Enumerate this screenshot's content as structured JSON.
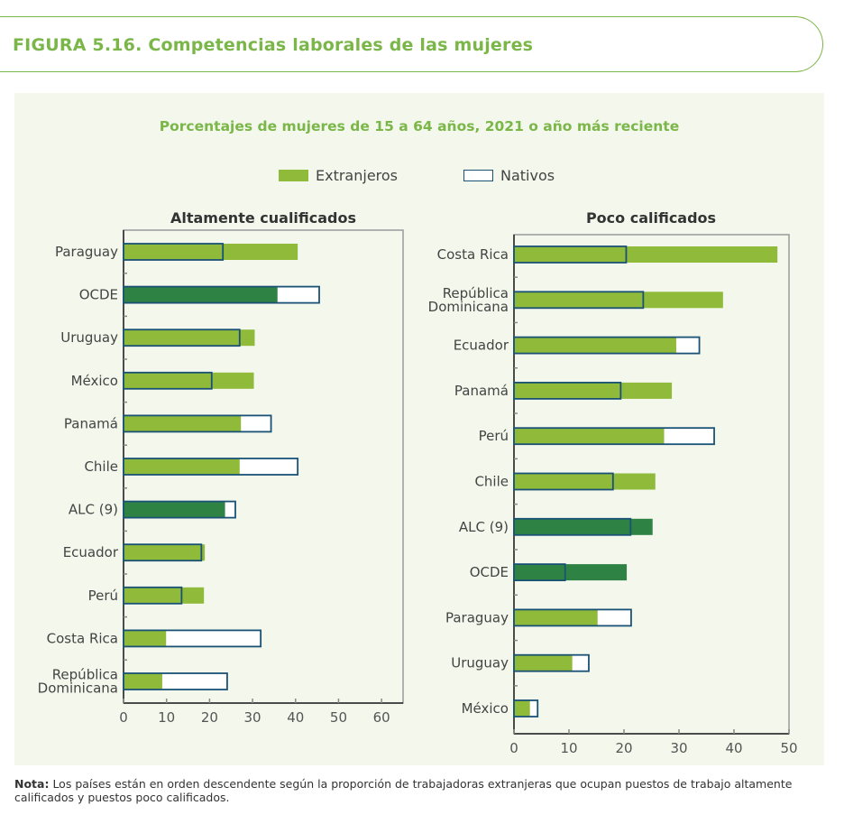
{
  "header": {
    "title": "FIGURA 5.16. Competencias laborales de las mujeres"
  },
  "subtitle": "Porcentajes de mujeres de 15 a 64 años, 2021 o año más reciente",
  "legend": {
    "foreign": "Extranjeros",
    "native": "Nativos"
  },
  "colors": {
    "foreign": "#8fba3a",
    "aggregate": "#2e8244",
    "native_outline": "#1a5276",
    "native_fill": "#ffffff",
    "accent": "#7ab648"
  },
  "chart_data": [
    {
      "type": "bar",
      "orientation": "horizontal",
      "title": "Altamente cualificados",
      "xlim": [
        0,
        65
      ],
      "xticks": [
        0,
        10,
        20,
        30,
        40,
        50,
        60
      ],
      "categories": [
        "Paraguay",
        "OCDE",
        "Uruguay",
        "México",
        "Panamá",
        "Chile",
        "ALC (9)",
        "Ecuador",
        "Perú",
        "Costa Rica",
        "República Dominicana"
      ],
      "highlight": [
        "OCDE",
        "ALC (9)"
      ],
      "series": [
        {
          "name": "Extranjeros",
          "values": [
            40.5,
            35.8,
            30.5,
            30.3,
            27.3,
            27.0,
            23.6,
            18.9,
            18.7,
            9.9,
            9.0
          ]
        },
        {
          "name": "Nativos",
          "values": [
            23.1,
            45.5,
            27.0,
            20.5,
            34.3,
            40.5,
            26.0,
            18.1,
            13.5,
            31.9,
            24.1
          ]
        }
      ]
    },
    {
      "type": "bar",
      "orientation": "horizontal",
      "title": "Poco calificados",
      "xlim": [
        0,
        50
      ],
      "xticks": [
        0,
        10,
        20,
        30,
        40,
        50
      ],
      "categories": [
        "Costa Rica",
        "República Dominicana",
        "Ecuador",
        "Panamá",
        "Perú",
        "Chile",
        "ALC (9)",
        "OCDE",
        "Paraguay",
        "Uruguay",
        "México"
      ],
      "highlight": [
        "ALC (9)",
        "OCDE"
      ],
      "series": [
        {
          "name": "Extranjeros",
          "values": [
            47.9,
            38.0,
            29.5,
            28.7,
            27.3,
            25.7,
            25.2,
            20.5,
            15.2,
            10.6,
            2.9
          ]
        },
        {
          "name": "Nativos",
          "values": [
            20.4,
            23.5,
            33.7,
            19.4,
            36.4,
            18.0,
            21.2,
            9.3,
            21.3,
            13.6,
            4.3
          ]
        }
      ]
    }
  ],
  "note": {
    "label": "Nota:",
    "text": " Los países están en orden descendente según la proporción de trabajadoras extranjeras que ocupan puestos de trabajo altamente calificados y puestos poco calificados."
  }
}
